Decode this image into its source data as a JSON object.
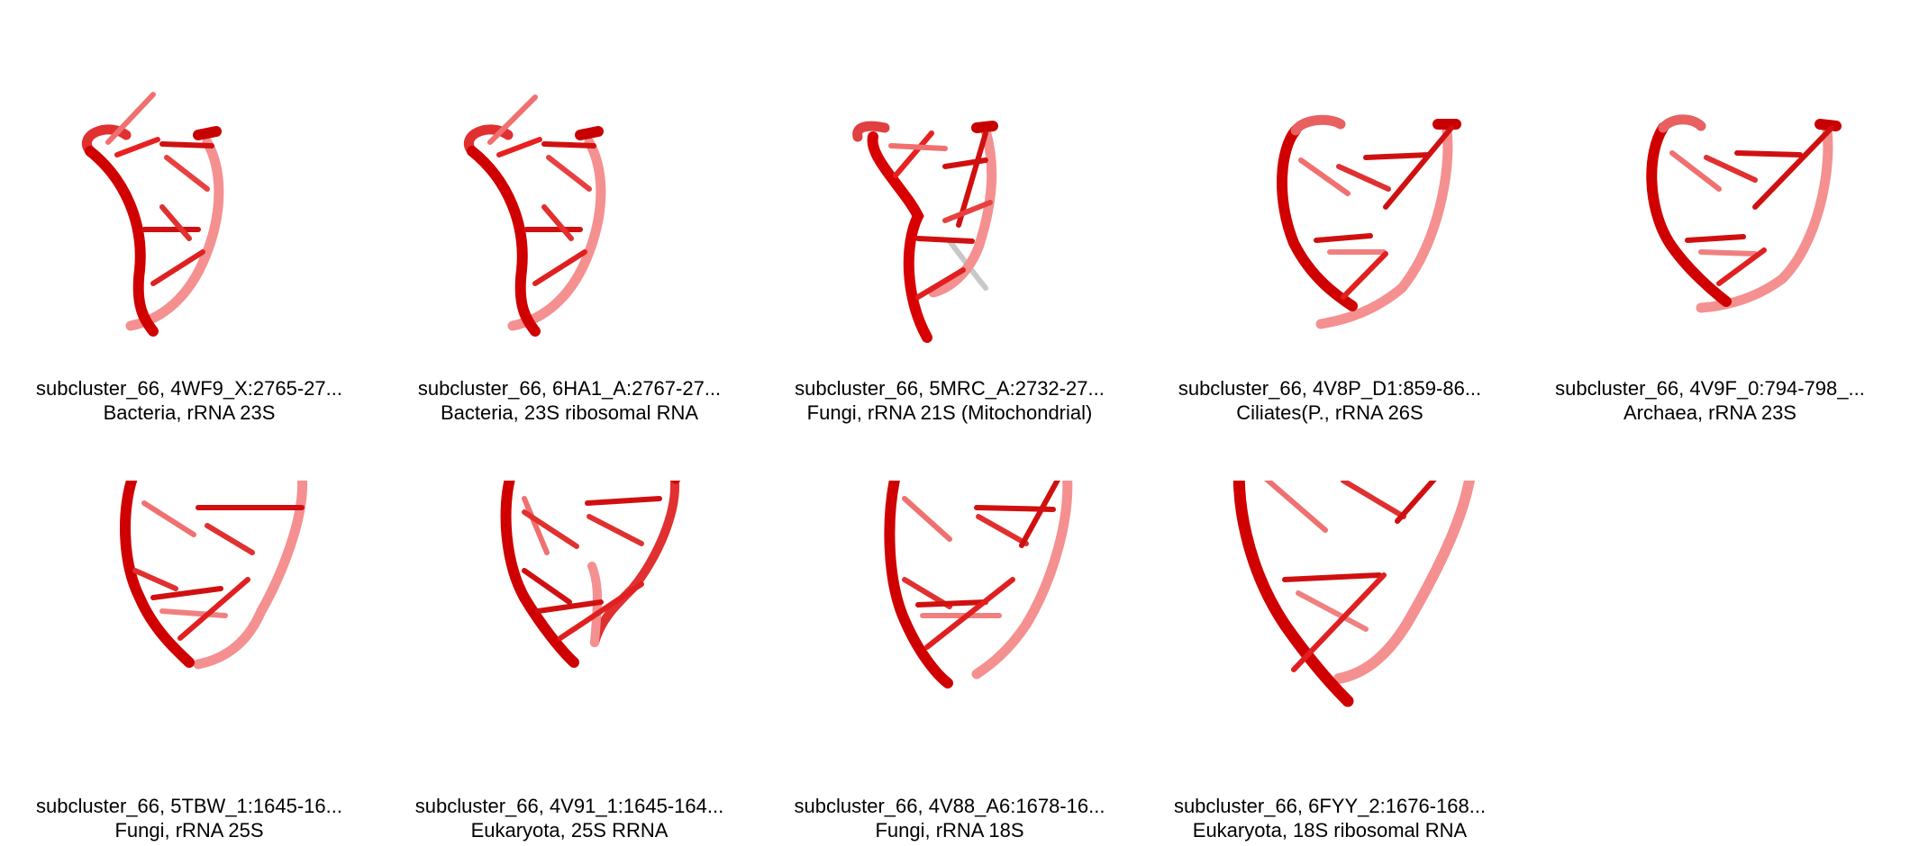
{
  "structures": [
    {
      "id_line": "subcluster_66, 4WF9_X:2765-27...",
      "taxon_line": "Bacteria, rRNA 23S",
      "icon": "rna-ribbon"
    },
    {
      "id_line": "subcluster_66, 6HA1_A:2767-27...",
      "taxon_line": "Bacteria, 23S ribosomal RNA",
      "icon": "rna-ribbon"
    },
    {
      "id_line": "subcluster_66, 5MRC_A:2732-27...",
      "taxon_line": "Fungi, rRNA 21S (Mitochondrial)",
      "icon": "rna-ribbon"
    },
    {
      "id_line": "subcluster_66, 4V8P_D1:859-86...",
      "taxon_line": "Ciliates(P., rRNA 26S",
      "icon": "rna-ribbon"
    },
    {
      "id_line": "subcluster_66, 4V9F_0:794-798_...",
      "taxon_line": "Archaea, rRNA 23S",
      "icon": "rna-ribbon"
    },
    {
      "id_line": "subcluster_66, 5TBW_1:1645-16...",
      "taxon_line": "Fungi, rRNA 25S",
      "icon": "rna-ribbon"
    },
    {
      "id_line": "subcluster_66, 4V91_1:1645-164...",
      "taxon_line": "Eukaryota, 25S RRNA",
      "icon": "rna-ribbon"
    },
    {
      "id_line": "subcluster_66, 4V88_A6:1678-16...",
      "taxon_line": "Fungi, rRNA 18S",
      "icon": "rna-ribbon"
    },
    {
      "id_line": "subcluster_66, 6FYY_2:1676-168...",
      "taxon_line": "Eukaryota, 18S ribosomal RNA",
      "icon": "rna-ribbon"
    }
  ],
  "colors": {
    "backbone_dark": "#c80000",
    "backbone": "#e81010",
    "backbone_light": "#f59090",
    "gray_strand": "#c8c8c8"
  }
}
